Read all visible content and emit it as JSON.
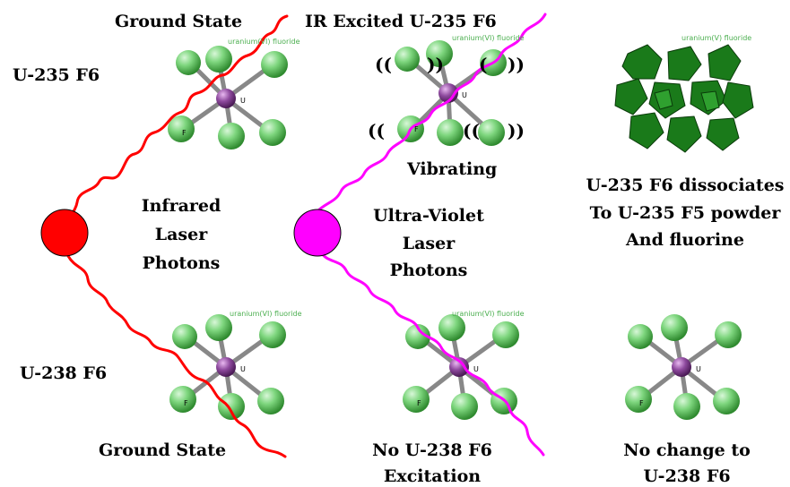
{
  "labels": {
    "ground_state_top": "Ground State",
    "ir_excited": "IR Excited U-235 F6",
    "u235": "U-235 F6",
    "u238": "U-238 F6",
    "vibrating": "Vibrating",
    "infrared": [
      "Infrared",
      "Laser",
      "Photons"
    ],
    "ultraviolet": [
      "Ultra-Violet",
      "Laser",
      "Photons"
    ],
    "dissociates": [
      "U-235 F6 dissociates",
      "To U-235 F5 powder",
      "And fluorine"
    ],
    "ground_state_bottom": "Ground State",
    "no_excitation": [
      "No U-238 F6",
      "Excitation"
    ],
    "no_change": [
      "No change to",
      "U-238 F6"
    ]
  },
  "molecule_captions": {
    "u6_top_left": "uranium(VI) fluoride",
    "u6_top_mid": "uranium(VI) fluoride",
    "u5_top_right": "uranium(V) fluoride",
    "u6_bottom_left": "uranium(VI) fluoride",
    "u6_bottom_mid": "uranium(VI) fluoride"
  },
  "vibration_marks": {
    "open_double": "((",
    "close_double": "))",
    "open_single": "(",
    "close_single": ")"
  },
  "atom_letters": {
    "uranium": "U",
    "fluorine": "F"
  },
  "colors": {
    "ir_laser": "#ff0000",
    "uv_laser": "#ff00ff",
    "fluorine": "#7ed67e",
    "uranium": "#8e4a9e",
    "bond": "#888888",
    "u5_polyhedra": "#1a7a1a"
  }
}
